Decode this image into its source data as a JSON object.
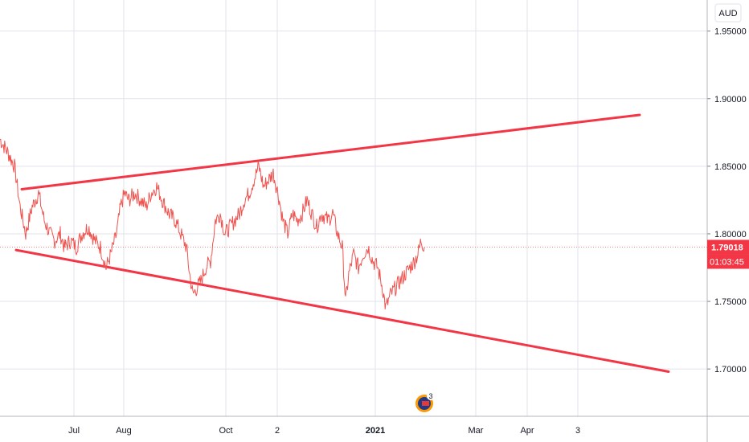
{
  "chart_data": {
    "type": "line",
    "currency": "AUD",
    "last_price": "1.79018",
    "countdown": "01:03:45",
    "y_ticks": [
      "1.95000",
      "1.90000",
      "1.85000",
      "1.80000",
      "1.75000",
      "1.70000"
    ],
    "x_ticks": [
      "Jul",
      "Aug",
      "Oct",
      "2",
      "2021",
      "Mar",
      "Apr",
      "3"
    ],
    "ylim": [
      1.665,
      1.973
    ],
    "grid": true,
    "series": [
      {
        "color": "#ef5350",
        "points": [
          [
            0,
            1.87
          ],
          [
            10,
            1.86
          ],
          [
            18,
            1.85
          ],
          [
            25,
            1.82
          ],
          [
            32,
            1.8
          ],
          [
            40,
            1.82
          ],
          [
            48,
            1.83
          ],
          [
            55,
            1.81
          ],
          [
            62,
            1.8
          ],
          [
            68,
            1.795
          ],
          [
            75,
            1.8
          ],
          [
            80,
            1.79
          ],
          [
            88,
            1.795
          ],
          [
            95,
            1.79
          ],
          [
            102,
            1.8
          ],
          [
            110,
            1.805
          ],
          [
            118,
            1.795
          ],
          [
            125,
            1.79
          ],
          [
            132,
            1.775
          ],
          [
            138,
            1.785
          ],
          [
            145,
            1.8
          ],
          [
            150,
            1.82
          ],
          [
            155,
            1.83
          ],
          [
            160,
            1.825
          ],
          [
            168,
            1.83
          ],
          [
            175,
            1.825
          ],
          [
            182,
            1.82
          ],
          [
            188,
            1.83
          ],
          [
            195,
            1.835
          ],
          [
            202,
            1.825
          ],
          [
            210,
            1.815
          ],
          [
            218,
            1.81
          ],
          [
            225,
            1.8
          ],
          [
            232,
            1.79
          ],
          [
            236,
            1.77
          ],
          [
            240,
            1.755
          ],
          [
            245,
            1.76
          ],
          [
            250,
            1.765
          ],
          [
            256,
            1.775
          ],
          [
            262,
            1.78
          ],
          [
            268,
            1.81
          ],
          [
            274,
            1.815
          ],
          [
            280,
            1.8
          ],
          [
            286,
            1.805
          ],
          [
            292,
            1.81
          ],
          [
            298,
            1.815
          ],
          [
            304,
            1.825
          ],
          [
            310,
            1.83
          ],
          [
            316,
            1.84
          ],
          [
            322,
            1.85
          ],
          [
            328,
            1.835
          ],
          [
            334,
            1.84
          ],
          [
            340,
            1.845
          ],
          [
            346,
            1.83
          ],
          [
            352,
            1.81
          ],
          [
            358,
            1.8
          ],
          [
            364,
            1.815
          ],
          [
            370,
            1.81
          ],
          [
            376,
            1.815
          ],
          [
            382,
            1.825
          ],
          [
            388,
            1.815
          ],
          [
            394,
            1.805
          ],
          [
            400,
            1.815
          ],
          [
            408,
            1.81
          ],
          [
            414,
            1.815
          ],
          [
            420,
            1.8
          ],
          [
            426,
            1.79
          ],
          [
            430,
            1.75
          ],
          [
            434,
            1.77
          ],
          [
            440,
            1.785
          ],
          [
            446,
            1.775
          ],
          [
            452,
            1.785
          ],
          [
            458,
            1.79
          ],
          [
            464,
            1.78
          ],
          [
            470,
            1.775
          ],
          [
            476,
            1.76
          ],
          [
            480,
            1.745
          ],
          [
            486,
            1.755
          ],
          [
            492,
            1.76
          ],
          [
            498,
            1.765
          ],
          [
            504,
            1.77
          ],
          [
            510,
            1.775
          ],
          [
            516,
            1.78
          ],
          [
            520,
            1.785
          ],
          [
            524,
            1.795
          ],
          [
            528,
            1.79
          ]
        ]
      }
    ],
    "trendlines": [
      {
        "color": "#f23645",
        "from": [
          27,
          1.833
        ],
        "to": [
          796,
          1.888
        ]
      },
      {
        "color": "#f23645",
        "from": [
          20,
          1.788
        ],
        "to": [
          832,
          1.698
        ]
      }
    ],
    "colors": {
      "accent": "#f23645",
      "grid": "#e0e3eb",
      "text": "#131722",
      "line": "#ef5350"
    }
  }
}
